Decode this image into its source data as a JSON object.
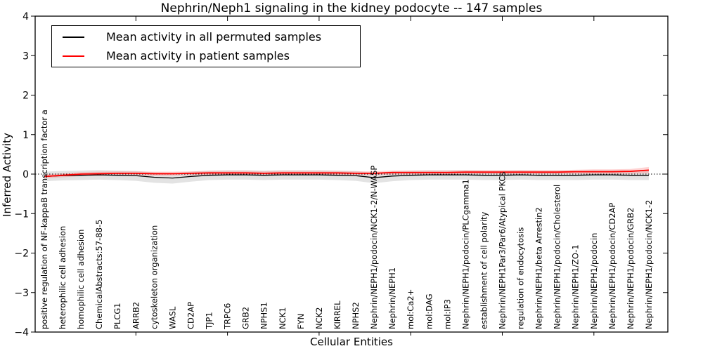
{
  "figure": {
    "title": "Nephrin/Neph1 signaling in the kidney podocyte -- 147 samples",
    "xlabel": "Cellular Entities",
    "ylabel": "Inferred Activity"
  },
  "legend": {
    "items": [
      {
        "label": "Mean activity in all permuted samples",
        "color": "#000000"
      },
      {
        "label": "Mean activity in patient samples",
        "color": "#ff0000"
      }
    ]
  },
  "colors": {
    "permuted_line": "#000000",
    "patient_line": "#ff0000",
    "permuted_band": "#c8c8c8",
    "patient_band": "#ff8080",
    "axis": "#000000"
  },
  "chart_data": {
    "type": "line",
    "title": "Nephrin/Neph1 signaling in the kidney podocyte -- 147 samples",
    "xlabel": "Cellular Entities",
    "ylabel": "Inferred Activity",
    "ylim": [
      -4,
      4
    ],
    "yticks": [
      4,
      3,
      2,
      1,
      0,
      -1,
      -2,
      -3,
      -4
    ],
    "ytick_labels": [
      "4",
      "3",
      "2",
      "1",
      "0",
      "−1",
      "−2",
      "−3",
      "−4"
    ],
    "xtick_index_positions": [
      5,
      10,
      15,
      20,
      25,
      30
    ],
    "grid": false,
    "legend_position": "upper left",
    "zero_line_style": "dotted",
    "categories": [
      "positive regulation of NF-kappaB transcription factor a",
      "heterophilic cell adhesion",
      "homophilic cell adhesion",
      "ChemicalAbstracts:57-88-5",
      "PLCG1",
      "ARRB2",
      "cytoskeleton organization",
      "WASL",
      "CD2AP",
      "TJP1",
      "TRPC6",
      "GRB2",
      "NPHS1",
      "NCK1",
      "FYN",
      "NCK2",
      "KIRREL",
      "NPHS2",
      "Nephrin/NEPH1/podocin/NCK1-2/N-WASP",
      "Nephrin/NEPH1",
      "mol:Ca2+",
      "mol:DAG",
      "mol:IP3",
      "Nephrin/NEPH1/podocin/PLCgamma1",
      "establishment of cell polarity",
      "Nephrin/NEPH1Par3/Par6/Atypical PKCs",
      "regulation of endocytosis",
      "Nephrin/NEPH1/beta Arrestin2",
      "Nephrin/NEPH1/podocin/Cholesterol",
      "Nephrin/NEPH1/ZO-1",
      "Nephrin/NEPH1/podocin",
      "Nephrin/NEPH1/podocin/CD2AP",
      "Nephrin/NEPH1/podocin/GRB2",
      "Nephrin/NEPH1/podocin/NCK1-2"
    ],
    "series": [
      {
        "name": "Mean activity in all permuted samples",
        "color": "#000000",
        "values": [
          -0.06,
          -0.04,
          -0.03,
          -0.02,
          -0.03,
          -0.04,
          -0.08,
          -0.1,
          -0.06,
          -0.03,
          -0.02,
          -0.02,
          -0.03,
          -0.02,
          -0.02,
          -0.02,
          -0.03,
          -0.04,
          -0.09,
          -0.05,
          -0.03,
          -0.02,
          -0.02,
          -0.02,
          -0.03,
          -0.03,
          -0.02,
          -0.03,
          -0.03,
          -0.03,
          -0.02,
          -0.02,
          -0.03,
          -0.03
        ]
      },
      {
        "name": "Mean activity in patient samples",
        "color": "#ff0000",
        "values": [
          -0.06,
          -0.03,
          0.0,
          0.01,
          0.02,
          0.02,
          0.01,
          0.01,
          0.02,
          0.03,
          0.03,
          0.03,
          0.02,
          0.03,
          0.03,
          0.03,
          0.03,
          0.02,
          0.02,
          0.04,
          0.04,
          0.04,
          0.04,
          0.05,
          0.05,
          0.05,
          0.05,
          0.05,
          0.05,
          0.06,
          0.06,
          0.06,
          0.07,
          0.1
        ]
      }
    ],
    "bands": [
      {
        "name": "permuted-range",
        "color": "#c8c8c8",
        "opacity": 0.5,
        "upper": [
          0.06,
          0.08,
          0.09,
          0.1,
          0.09,
          0.08,
          0.04,
          0.02,
          0.06,
          0.09,
          0.1,
          0.1,
          0.09,
          0.1,
          0.1,
          0.1,
          0.09,
          0.08,
          0.03,
          0.07,
          0.09,
          0.1,
          0.1,
          0.1,
          0.09,
          0.09,
          0.1,
          0.09,
          0.09,
          0.09,
          0.1,
          0.1,
          0.09,
          0.09
        ],
        "lower": [
          -0.18,
          -0.16,
          -0.15,
          -0.14,
          -0.15,
          -0.17,
          -0.22,
          -0.24,
          -0.19,
          -0.15,
          -0.14,
          -0.14,
          -0.15,
          -0.14,
          -0.14,
          -0.14,
          -0.15,
          -0.17,
          -0.23,
          -0.18,
          -0.15,
          -0.14,
          -0.14,
          -0.14,
          -0.15,
          -0.15,
          -0.14,
          -0.15,
          -0.15,
          -0.15,
          -0.14,
          -0.14,
          -0.15,
          -0.15
        ]
      },
      {
        "name": "patient-range",
        "color": "#ff8080",
        "opacity": 0.35,
        "upper": [
          -0.01,
          0.02,
          0.05,
          0.06,
          0.07,
          0.07,
          0.06,
          0.06,
          0.07,
          0.08,
          0.08,
          0.08,
          0.07,
          0.08,
          0.08,
          0.08,
          0.08,
          0.07,
          0.07,
          0.09,
          0.09,
          0.09,
          0.09,
          0.1,
          0.1,
          0.1,
          0.1,
          0.1,
          0.1,
          0.11,
          0.12,
          0.12,
          0.13,
          0.18
        ],
        "lower": [
          -0.11,
          -0.08,
          -0.05,
          -0.04,
          -0.03,
          -0.03,
          -0.04,
          -0.04,
          -0.03,
          -0.02,
          -0.02,
          -0.02,
          -0.03,
          -0.02,
          -0.02,
          -0.02,
          -0.02,
          -0.03,
          -0.03,
          -0.01,
          -0.01,
          -0.01,
          -0.01,
          0.0,
          0.0,
          0.0,
          0.0,
          0.0,
          0.0,
          0.01,
          0.0,
          0.0,
          0.01,
          0.02
        ]
      }
    ]
  }
}
